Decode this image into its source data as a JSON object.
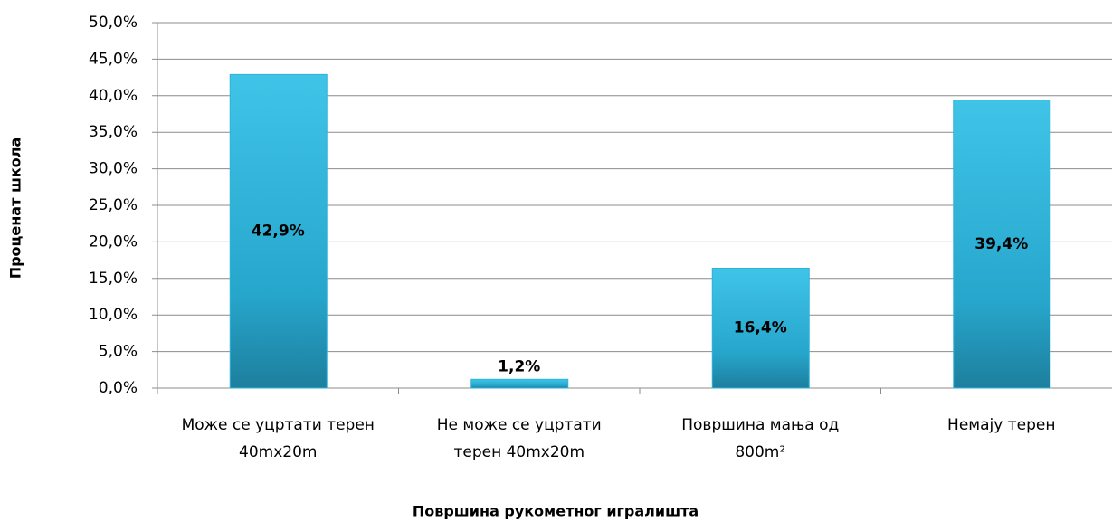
{
  "chart_data": {
    "type": "bar",
    "xlabel": "Површина рукометног игралишта",
    "ylabel": "Проценат школа",
    "categories": [
      "Може се уцртати терен\n40mx20m",
      "Не може се уцртати\nтерен 40mx20m",
      "Површина мања од\n800m²",
      "Немају терен"
    ],
    "values": [
      42.9,
      1.2,
      16.4,
      39.4
    ],
    "value_labels": [
      "42,9%",
      "1,2%",
      "16,4%",
      "39,4%"
    ],
    "color": "#2fb3d8",
    "ylim": [
      0,
      50
    ],
    "yticks": [
      {
        "value": 0,
        "label": "0,0%"
      },
      {
        "value": 5,
        "label": "5,0%"
      },
      {
        "value": 10,
        "label": "10,0%"
      },
      {
        "value": 15,
        "label": "15,0%"
      },
      {
        "value": 20,
        "label": "20,0%"
      },
      {
        "value": 25,
        "label": "25,0%"
      },
      {
        "value": 30,
        "label": "30,0%"
      },
      {
        "value": 35,
        "label": "35,0%"
      },
      {
        "value": 40,
        "label": "40,0%"
      },
      {
        "value": 45,
        "label": "45,0%"
      },
      {
        "value": 50,
        "label": "50,0%"
      }
    ],
    "grid": true
  }
}
